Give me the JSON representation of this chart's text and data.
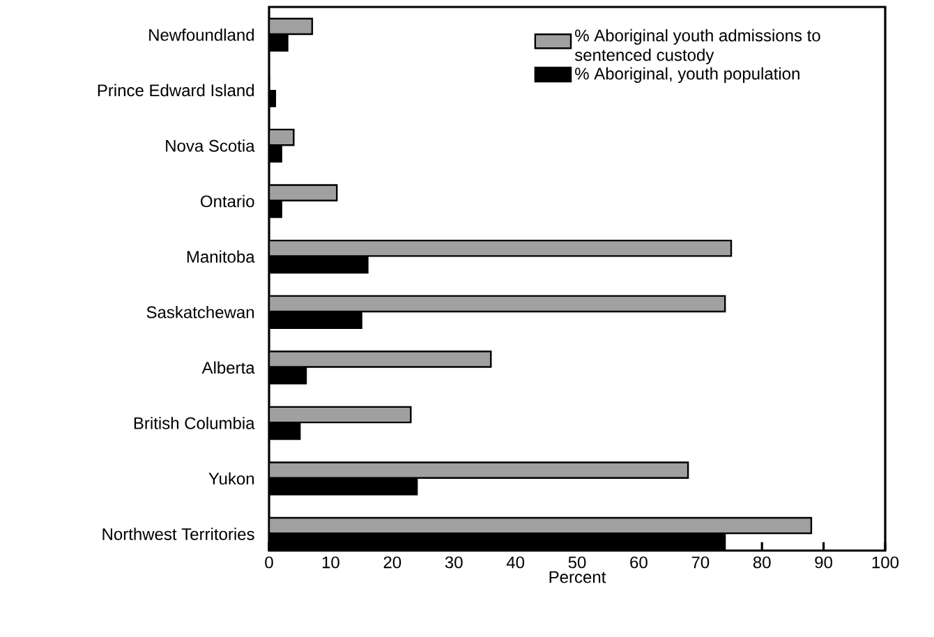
{
  "chart_data": {
    "type": "bar",
    "orientation": "horizontal",
    "xlabel": "Percent",
    "categories": [
      "Newfoundland",
      "Prince Edward Island",
      "Nova Scotia",
      "Ontario",
      "Manitoba",
      "Saskatchewan",
      "Alberta",
      "British Columbia",
      "Yukon",
      "Northwest Territories"
    ],
    "series": [
      {
        "name": "% Aboriginal youth admissions to sentenced custody",
        "color": "#a0a0a0",
        "values": [
          7,
          0,
          4,
          11,
          75,
          74,
          36,
          23,
          68,
          88
        ]
      },
      {
        "name": "% Aboriginal, youth population",
        "color": "#000000",
        "values": [
          3,
          1,
          2,
          2,
          16,
          15,
          6,
          5,
          24,
          74
        ]
      }
    ],
    "xlim": [
      0,
      100
    ],
    "xticks": [
      0,
      10,
      20,
      30,
      40,
      50,
      60,
      70,
      80,
      90,
      100
    ],
    "legend": "top right"
  }
}
